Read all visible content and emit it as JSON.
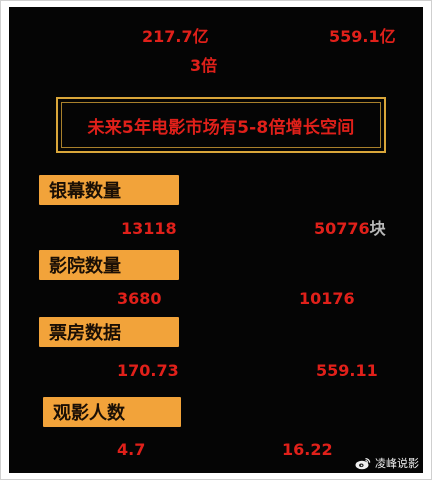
{
  "top": {
    "left_value": "217.7亿",
    "right_value": "559.1亿",
    "multiplier": "3倍"
  },
  "headline": "未来5年电影市场有5-8倍增长空间",
  "rows": [
    {
      "label": "银幕数量",
      "left": "13118",
      "right": "50776",
      "right_unit": "块"
    },
    {
      "label": "影院数量",
      "left": "3680",
      "right": "10176"
    },
    {
      "label": "票房数据",
      "left": "170.73",
      "right": "559.11"
    },
    {
      "label": "观影人数",
      "left": "4.7",
      "right": "16.22"
    }
  ],
  "watermark": "凌峰说影",
  "colors": {
    "background": "#050505",
    "accent_red": "#e0201a",
    "label_orange": "#f2a33a",
    "headline_border": "#d9a63a"
  },
  "icons": {
    "watermark": "weibo-icon"
  }
}
